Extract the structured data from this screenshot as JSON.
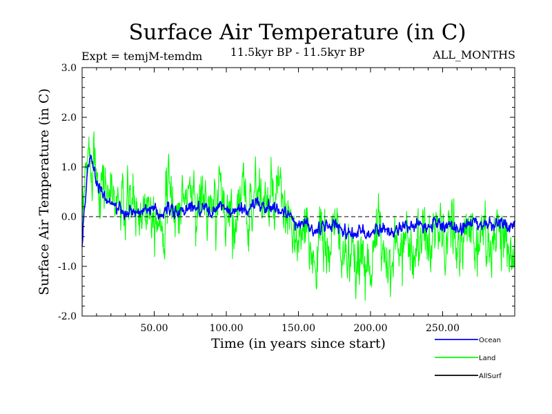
{
  "chart_data": {
    "type": "line",
    "title": "Surface Air Temperature (in C)",
    "subtitle": "11.5kyr BP - 11.5kyr BP",
    "experiment": "Expt = temjM-temdm",
    "period": "ALL_MONTHS",
    "xlabel": "Time (in years since start)",
    "ylabel": "Surface Air Temperature (in C)",
    "xlim": [
      0,
      300
    ],
    "ylim": [
      -2.0,
      3.0
    ],
    "x_ticks": [
      50,
      100,
      150,
      200,
      250
    ],
    "x_tick_labels": [
      "50.00",
      "100.00",
      "150.00",
      "200.00",
      "250.00"
    ],
    "y_ticks": [
      -2.0,
      -1.0,
      0.0,
      1.0,
      2.0,
      3.0
    ],
    "y_tick_labels": [
      "-2.0",
      "-1.0",
      "0.0",
      "1.0",
      "2.0",
      "3.0"
    ],
    "reference_line": 0.0,
    "series": [
      {
        "name": "Land",
        "color": "#00ff00",
        "x": [
          0,
          2,
          4,
          6,
          8,
          10,
          15,
          20,
          25,
          30,
          35,
          40,
          45,
          50,
          55,
          60,
          65,
          70,
          75,
          80,
          85,
          90,
          95,
          100,
          105,
          110,
          115,
          120,
          125,
          130,
          135,
          140,
          145,
          150,
          155,
          160,
          165,
          170,
          175,
          180,
          185,
          190,
          195,
          200,
          205,
          210,
          215,
          220,
          225,
          230,
          235,
          240,
          245,
          250,
          255,
          260,
          265,
          270,
          275,
          280,
          285,
          290,
          295,
          300
        ],
        "values": [
          -0.6,
          0.5,
          1.3,
          1.1,
          1.5,
          0.9,
          0.7,
          0.4,
          0.3,
          0.1,
          0.3,
          0.0,
          0.4,
          0.2,
          -0.1,
          0.5,
          0.1,
          0.3,
          0.6,
          0.2,
          0.4,
          -0.1,
          0.5,
          0.2,
          0.0,
          0.4,
          0.1,
          0.6,
          0.3,
          0.2,
          0.4,
          0.1,
          -0.3,
          -0.6,
          -0.4,
          -0.8,
          -0.5,
          -0.7,
          -0.3,
          -0.6,
          -0.9,
          -1.2,
          -0.7,
          -0.9,
          -0.4,
          -0.6,
          -1.0,
          -0.5,
          -0.3,
          -0.7,
          -0.4,
          -0.6,
          -0.2,
          -0.5,
          -0.3,
          -0.7,
          -0.4,
          -0.2,
          -0.6,
          -0.3,
          -0.5,
          -0.2,
          -0.6,
          -0.4
        ],
        "variability": 0.6
      },
      {
        "name": "Ocean",
        "color": "#0000ff",
        "x": [
          0,
          2,
          4,
          6,
          8,
          10,
          15,
          20,
          25,
          30,
          35,
          40,
          45,
          50,
          55,
          60,
          65,
          70,
          75,
          80,
          85,
          90,
          95,
          100,
          105,
          110,
          115,
          120,
          125,
          130,
          135,
          140,
          145,
          150,
          155,
          160,
          165,
          170,
          175,
          180,
          185,
          190,
          195,
          200,
          205,
          210,
          215,
          220,
          225,
          230,
          235,
          240,
          245,
          250,
          255,
          260,
          265,
          270,
          275,
          280,
          285,
          290,
          295,
          300
        ],
        "values": [
          -0.6,
          0.3,
          1.0,
          1.2,
          1.0,
          0.7,
          0.45,
          0.3,
          0.15,
          0.05,
          0.1,
          0.05,
          0.15,
          0.1,
          0.0,
          0.2,
          0.05,
          0.1,
          0.25,
          0.15,
          0.2,
          0.05,
          0.2,
          0.15,
          0.05,
          0.2,
          0.1,
          0.3,
          0.2,
          0.15,
          0.2,
          0.1,
          -0.05,
          -0.15,
          -0.1,
          -0.3,
          -0.25,
          -0.2,
          -0.15,
          -0.25,
          -0.3,
          -0.35,
          -0.3,
          -0.35,
          -0.2,
          -0.25,
          -0.35,
          -0.2,
          -0.15,
          -0.25,
          -0.2,
          -0.2,
          -0.1,
          -0.2,
          -0.15,
          -0.25,
          -0.2,
          -0.1,
          -0.2,
          -0.1,
          -0.2,
          -0.1,
          -0.2,
          -0.15
        ],
        "variability": 0.12
      },
      {
        "name": "AllSurf",
        "color": "#000000",
        "x": [],
        "values": []
      }
    ],
    "legend": [
      "Ocean",
      "Land",
      "AllSurf"
    ],
    "legend_position": "bottom-right"
  }
}
